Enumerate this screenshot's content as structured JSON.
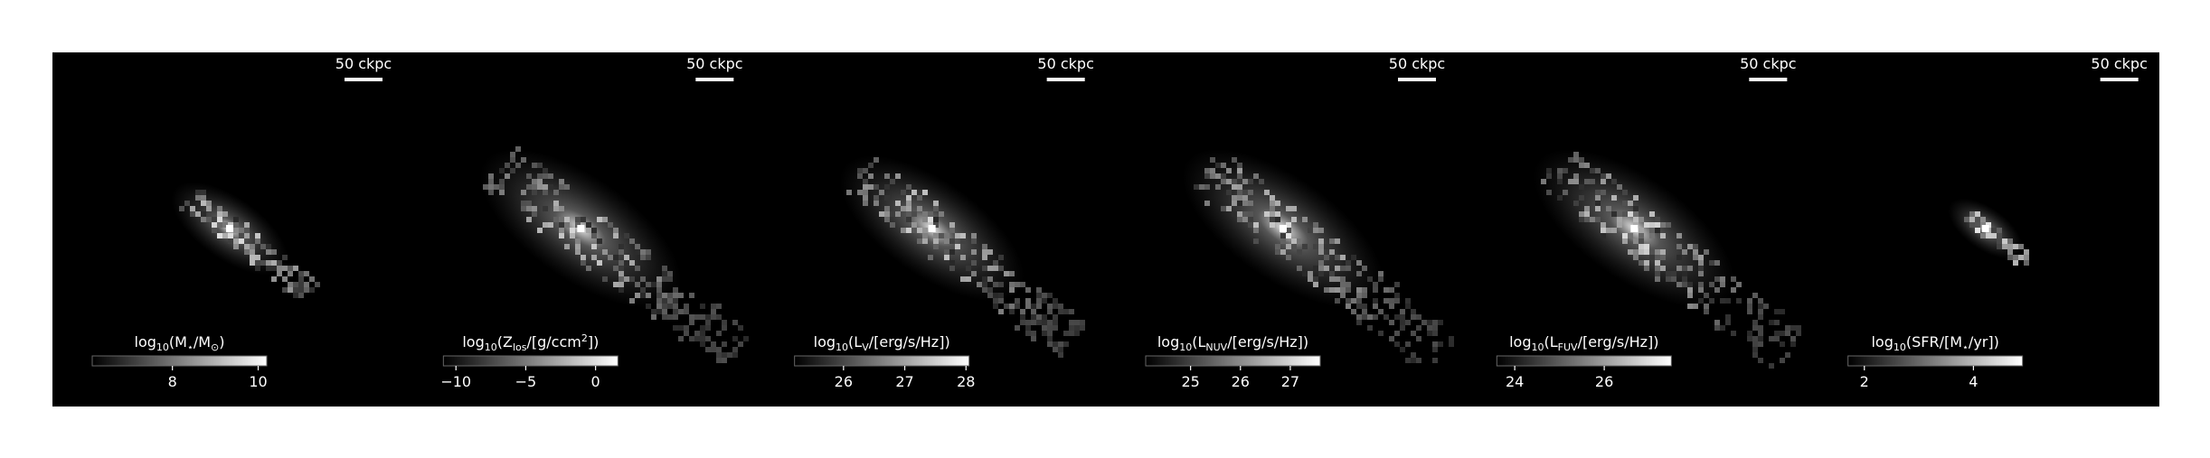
{
  "chart_data": [
    {
      "type": "image",
      "scalebar": "50 ckpc",
      "clim": [
        6.13,
        10.2
      ],
      "ticks": [
        8,
        10
      ],
      "label": [
        {
          "t": "log"
        },
        {
          "t": "10",
          "s": "sub"
        },
        {
          "t": "(M"
        },
        {
          "t": "⋆",
          "s": "sub"
        },
        {
          "t": "/M"
        },
        {
          "t": "⊙",
          "s": "sub"
        },
        {
          "t": ")"
        }
      ]
    },
    {
      "type": "image",
      "scalebar": "50 ckpc",
      "clim": [
        -10.9,
        1.6
      ],
      "ticks": [
        {
          "value": -10,
          "label": "−10"
        },
        {
          "value": -5,
          "label": "−5"
        },
        0
      ],
      "label": [
        {
          "t": "log"
        },
        {
          "t": "10",
          "s": "sub"
        },
        {
          "t": "(Z"
        },
        {
          "t": "los",
          "s": "sub"
        },
        {
          "t": "/[g/ccm"
        },
        {
          "t": "2",
          "s": "sup"
        },
        {
          "t": "])"
        }
      ]
    },
    {
      "type": "image",
      "scalebar": "50 ckpc",
      "clim": [
        25.2,
        28.05
      ],
      "ticks": [
        26,
        27,
        28
      ],
      "label": [
        {
          "t": "log"
        },
        {
          "t": "10",
          "s": "sub"
        },
        {
          "t": "(L"
        },
        {
          "t": "V",
          "s": "sub"
        },
        {
          "t": "/[erg/s/Hz])"
        }
      ]
    },
    {
      "type": "image",
      "scalebar": "50 ckpc",
      "clim": [
        24.1,
        27.6
      ],
      "ticks": [
        25,
        26,
        27
      ],
      "label": [
        {
          "t": "log"
        },
        {
          "t": "10",
          "s": "sub"
        },
        {
          "t": "(L"
        },
        {
          "t": "NUV",
          "s": "sub"
        },
        {
          "t": "/[erg/s/Hz])"
        }
      ]
    },
    {
      "type": "image",
      "scalebar": "50 ckpc",
      "clim": [
        23.6,
        27.5
      ],
      "ticks": [
        24,
        26
      ],
      "label": [
        {
          "t": "log"
        },
        {
          "t": "10",
          "s": "sub"
        },
        {
          "t": "(L"
        },
        {
          "t": "FUV",
          "s": "sub"
        },
        {
          "t": "/[erg/s/Hz])"
        }
      ]
    },
    {
      "type": "image",
      "scalebar": "50 ckpc",
      "clim": [
        1.7,
        4.9
      ],
      "ticks": [
        2,
        4
      ],
      "label": [
        {
          "t": "log"
        },
        {
          "t": "10",
          "s": "sub"
        },
        {
          "t": "(SFR/[M"
        },
        {
          "t": "⋆",
          "s": "sub"
        },
        {
          "t": "/yr])"
        }
      ]
    }
  ]
}
